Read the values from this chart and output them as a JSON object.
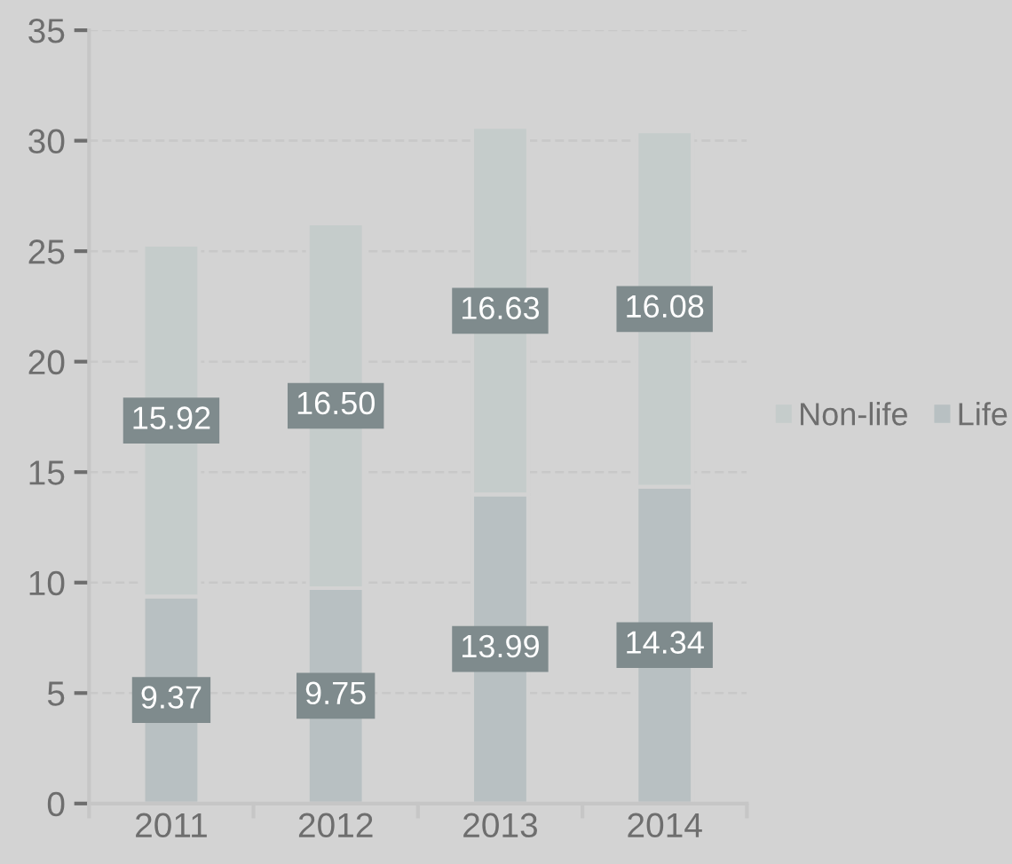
{
  "chart_data": {
    "type": "bar",
    "stacked": true,
    "categories": [
      "2011",
      "2012",
      "2013",
      "2014"
    ],
    "series": [
      {
        "name": "Life",
        "color": "#b8c0c2",
        "values": [
          9.37,
          9.75,
          13.99,
          14.34
        ],
        "value_labels": [
          "9.37",
          "9.75",
          "13.99",
          "14.34"
        ]
      },
      {
        "name": "Non-life",
        "color": "#c5cccb",
        "values": [
          15.92,
          16.5,
          16.63,
          16.08
        ],
        "value_labels": [
          "15.92",
          "16.50",
          "16.63",
          "16.08"
        ]
      }
    ],
    "ylim": [
      0,
      35
    ],
    "yticks": [
      0,
      5,
      10,
      15,
      20,
      25,
      30,
      35
    ],
    "grid": "y",
    "legend": "right"
  }
}
